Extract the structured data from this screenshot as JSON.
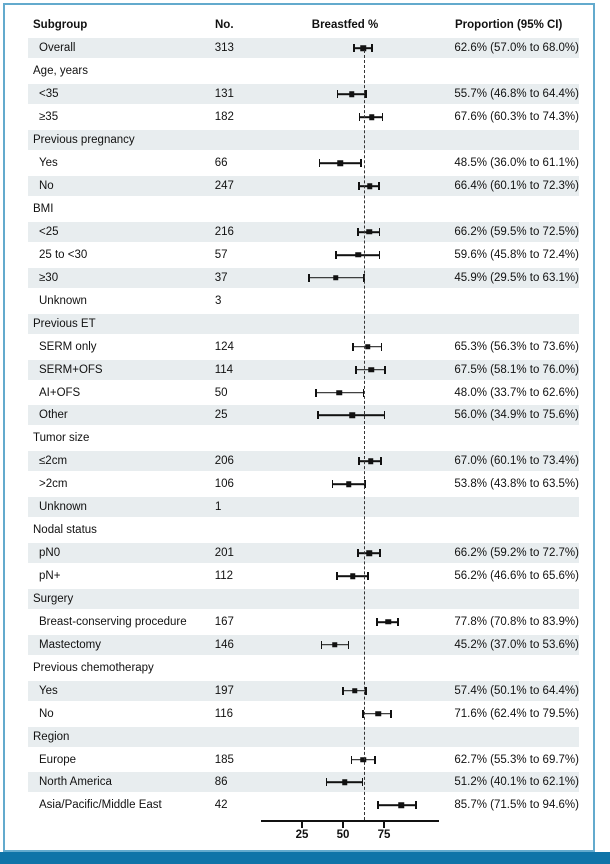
{
  "colors": {
    "frame_border": "#63aacd",
    "bottom_bar": "#0f74a8",
    "row_shade": "#e8edef",
    "ink": "#111111"
  },
  "table": {
    "headers": {
      "subgroup": "Subgroup",
      "no": "No.",
      "breastfed": "Breastfed %",
      "proportion": "Proportion (95% CI)"
    }
  },
  "chart_data": {
    "type": "scatter",
    "subtype": "forest-plot",
    "title": "",
    "xlabel": "Breastfed %",
    "xlim": [
      0,
      100
    ],
    "x_ticks": [
      25,
      50,
      75
    ],
    "reference_line": 62.6,
    "grid": false,
    "points": [
      {
        "label": "Overall",
        "n": "313",
        "group": false,
        "est": 62.6,
        "lo": 57.0,
        "hi": 68.0,
        "ci_text": "62.6% (57.0% to 68.0%)"
      },
      {
        "label": "Age, years",
        "n": "",
        "group": true,
        "est": null,
        "lo": null,
        "hi": null,
        "ci_text": ""
      },
      {
        "label": "<35",
        "n": "131",
        "group": false,
        "est": 55.7,
        "lo": 46.8,
        "hi": 64.4,
        "ci_text": "55.7% (46.8% to 64.4%)"
      },
      {
        "label": "≥35",
        "n": "182",
        "group": false,
        "est": 67.6,
        "lo": 60.3,
        "hi": 74.3,
        "ci_text": "67.6% (60.3% to 74.3%)"
      },
      {
        "label": "Previous pregnancy",
        "n": "",
        "group": true,
        "est": null,
        "lo": null,
        "hi": null,
        "ci_text": ""
      },
      {
        "label": "Yes",
        "n": "66",
        "group": false,
        "est": 48.5,
        "lo": 36.0,
        "hi": 61.1,
        "ci_text": "48.5% (36.0% to 61.1%)"
      },
      {
        "label": "No",
        "n": "247",
        "group": false,
        "est": 66.4,
        "lo": 60.1,
        "hi": 72.3,
        "ci_text": "66.4% (60.1% to 72.3%)"
      },
      {
        "label": "BMI",
        "n": "",
        "group": true,
        "est": null,
        "lo": null,
        "hi": null,
        "ci_text": ""
      },
      {
        "label": "<25",
        "n": "216",
        "group": false,
        "est": 66.2,
        "lo": 59.5,
        "hi": 72.5,
        "ci_text": "66.2% (59.5% to 72.5%)"
      },
      {
        "label": "25 to <30",
        "n": "57",
        "group": false,
        "est": 59.6,
        "lo": 45.8,
        "hi": 72.4,
        "ci_text": "59.6% (45.8% to 72.4%)"
      },
      {
        "label": "≥30",
        "n": "37",
        "group": false,
        "est": 45.9,
        "lo": 29.5,
        "hi": 63.1,
        "ci_text": "45.9% (29.5% to 63.1%)"
      },
      {
        "label": "Unknown",
        "n": "3",
        "group": false,
        "est": null,
        "lo": null,
        "hi": null,
        "ci_text": ""
      },
      {
        "label": "Previous ET",
        "n": "",
        "group": true,
        "est": null,
        "lo": null,
        "hi": null,
        "ci_text": ""
      },
      {
        "label": "SERM only",
        "n": "124",
        "group": false,
        "est": 65.3,
        "lo": 56.3,
        "hi": 73.6,
        "ci_text": "65.3% (56.3% to 73.6%)"
      },
      {
        "label": "SERM+OFS",
        "n": "114",
        "group": false,
        "est": 67.5,
        "lo": 58.1,
        "hi": 76.0,
        "ci_text": "67.5% (58.1% to 76.0%)"
      },
      {
        "label": "AI+OFS",
        "n": "50",
        "group": false,
        "est": 48.0,
        "lo": 33.7,
        "hi": 62.6,
        "ci_text": "48.0% (33.7% to 62.6%)"
      },
      {
        "label": "Other",
        "n": "25",
        "group": false,
        "est": 56.0,
        "lo": 34.9,
        "hi": 75.6,
        "ci_text": "56.0% (34.9% to 75.6%)"
      },
      {
        "label": "Tumor size",
        "n": "",
        "group": true,
        "est": null,
        "lo": null,
        "hi": null,
        "ci_text": ""
      },
      {
        "label": "≤2cm",
        "n": "206",
        "group": false,
        "est": 67.0,
        "lo": 60.1,
        "hi": 73.4,
        "ci_text": "67.0% (60.1% to 73.4%)"
      },
      {
        "label": ">2cm",
        "n": "106",
        "group": false,
        "est": 53.8,
        "lo": 43.8,
        "hi": 63.5,
        "ci_text": "53.8% (43.8% to 63.5%)"
      },
      {
        "label": "Unknown",
        "n": "1",
        "group": false,
        "est": null,
        "lo": null,
        "hi": null,
        "ci_text": ""
      },
      {
        "label": "Nodal status",
        "n": "",
        "group": true,
        "est": null,
        "lo": null,
        "hi": null,
        "ci_text": ""
      },
      {
        "label": "pN0",
        "n": "201",
        "group": false,
        "est": 66.2,
        "lo": 59.2,
        "hi": 72.7,
        "ci_text": "66.2% (59.2% to 72.7%)"
      },
      {
        "label": "pN+",
        "n": "112",
        "group": false,
        "est": 56.2,
        "lo": 46.6,
        "hi": 65.6,
        "ci_text": "56.2% (46.6% to 65.6%)"
      },
      {
        "label": "Surgery",
        "n": "",
        "group": true,
        "est": null,
        "lo": null,
        "hi": null,
        "ci_text": ""
      },
      {
        "label": "Breast-conserving procedure",
        "n": "167",
        "group": false,
        "est": 77.8,
        "lo": 70.8,
        "hi": 83.9,
        "ci_text": "77.8% (70.8% to 83.9%)"
      },
      {
        "label": "Mastectomy",
        "n": "146",
        "group": false,
        "est": 45.2,
        "lo": 37.0,
        "hi": 53.6,
        "ci_text": "45.2% (37.0% to 53.6%)"
      },
      {
        "label": "Previous chemotherapy",
        "n": "",
        "group": true,
        "est": null,
        "lo": null,
        "hi": null,
        "ci_text": ""
      },
      {
        "label": "Yes",
        "n": "197",
        "group": false,
        "est": 57.4,
        "lo": 50.1,
        "hi": 64.4,
        "ci_text": "57.4% (50.1% to 64.4%)"
      },
      {
        "label": "No",
        "n": "116",
        "group": false,
        "est": 71.6,
        "lo": 62.4,
        "hi": 79.5,
        "ci_text": "71.6% (62.4% to 79.5%)"
      },
      {
        "label": "Region",
        "n": "",
        "group": true,
        "est": null,
        "lo": null,
        "hi": null,
        "ci_text": ""
      },
      {
        "label": "Europe",
        "n": "185",
        "group": false,
        "est": 62.7,
        "lo": 55.3,
        "hi": 69.7,
        "ci_text": "62.7% (55.3% to 69.7%)"
      },
      {
        "label": "North America",
        "n": "86",
        "group": false,
        "est": 51.2,
        "lo": 40.1,
        "hi": 62.1,
        "ci_text": "51.2% (40.1% to 62.1%)"
      },
      {
        "label": "Asia/Pacific/Middle East",
        "n": "42",
        "group": false,
        "est": 85.7,
        "lo": 71.5,
        "hi": 94.6,
        "ci_text": "85.7% (71.5% to 94.6%)"
      }
    ]
  }
}
